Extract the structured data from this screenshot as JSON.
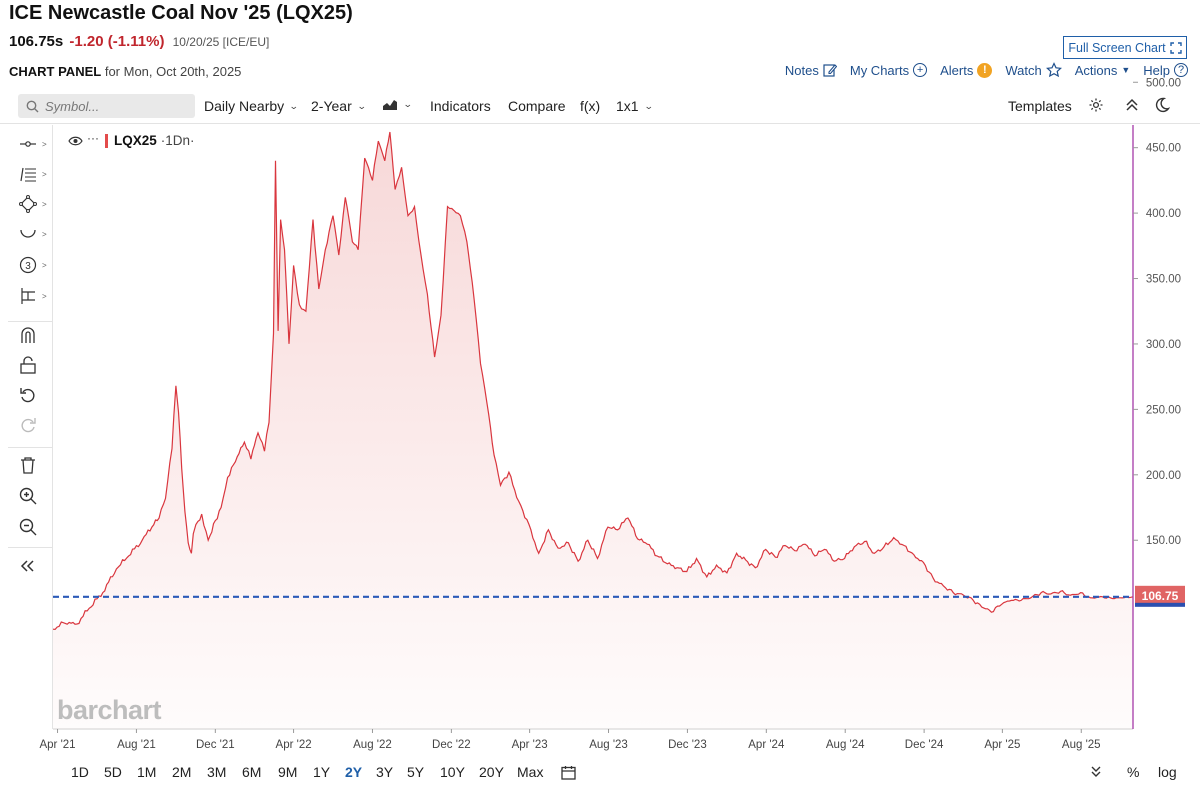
{
  "header": {
    "title": "ICE Newcastle Coal Nov '25 (LQX25)",
    "price": "106.75s",
    "change": "-1.20 (-1.11%)",
    "meta": "10/20/25 [ICE/EU]",
    "panel_label": "CHART PANEL",
    "panel_date": "for Mon, Oct 20th, 2025",
    "full_screen": "Full Screen Chart"
  },
  "actions": {
    "notes": "Notes",
    "my_charts": "My Charts",
    "alerts": "Alerts",
    "watch": "Watch",
    "actions": "Actions",
    "help": "Help"
  },
  "toolbar": {
    "search_placeholder": "Symbol...",
    "aggregation": "Daily Nearby",
    "period": "2-Year",
    "indicators": "Indicators",
    "compare": "Compare",
    "fx": "f(x)",
    "layout": "1x1",
    "templates": "Templates"
  },
  "legend": {
    "symbol": "LQX25",
    "interval": "·1Dn·"
  },
  "watermark": "barchart",
  "timeframes": [
    "1D",
    "5D",
    "1M",
    "2M",
    "3M",
    "6M",
    "9M",
    "1Y",
    "2Y",
    "3Y",
    "5Y",
    "10Y",
    "20Y",
    "Max"
  ],
  "active_timeframe": "2Y",
  "bottom_right": {
    "percent": "%",
    "log": "log"
  },
  "colors": {
    "line": "#d9363e",
    "fill": "#f7d6d6",
    "current_line": "#2b5ab8",
    "price_tag": "#e06464",
    "accent": "#1f5fa8"
  },
  "chart_data": {
    "type": "area",
    "ylim": [
      0,
      500
    ],
    "y_ticks": [
      "500.00",
      "450.00",
      "400.00",
      "350.00",
      "300.00",
      "250.00",
      "200.00",
      "150.00"
    ],
    "x_ticks": [
      "Apr '21",
      "Aug '21",
      "Dec '21",
      "Apr '22",
      "Aug '22",
      "Dec '22",
      "Apr '23",
      "Aug '23",
      "Dec '23",
      "Apr '24",
      "Aug '24",
      "Dec '24",
      "Apr '25",
      "Aug '25"
    ],
    "current_price": 106.75,
    "current_price_label": "106.75",
    "series": [
      {
        "x": [
          "2021-03-25",
          "2021-04-10",
          "2021-05-01",
          "2021-05-20",
          "2021-06-10",
          "2021-07-01",
          "2021-07-20",
          "2021-08-10",
          "2021-08-25",
          "2021-09-05",
          "2021-09-15",
          "2021-09-25",
          "2021-10-01",
          "2021-10-05",
          "2021-10-10",
          "2021-10-15",
          "2021-10-20",
          "2021-10-25",
          "2021-10-28",
          "2021-11-01",
          "2021-11-10",
          "2021-11-20",
          "2021-12-01",
          "2021-12-10",
          "2021-12-20",
          "2022-01-01",
          "2022-01-15",
          "2022-01-25",
          "2022-02-05",
          "2022-02-15",
          "2022-02-22",
          "2022-03-01",
          "2022-03-04",
          "2022-03-08",
          "2022-03-12",
          "2022-03-18",
          "2022-03-25",
          "2022-04-01",
          "2022-04-10",
          "2022-04-20",
          "2022-05-01",
          "2022-05-10",
          "2022-05-20",
          "2022-06-01",
          "2022-06-10",
          "2022-06-20",
          "2022-07-01",
          "2022-07-10",
          "2022-07-20",
          "2022-08-01",
          "2022-08-10",
          "2022-08-20",
          "2022-08-28",
          "2022-09-05",
          "2022-09-15",
          "2022-09-25",
          "2022-10-05",
          "2022-10-15",
          "2022-10-25",
          "2022-11-05",
          "2022-11-15",
          "2022-11-25",
          "2022-12-05",
          "2022-12-15",
          "2022-12-25",
          "2023-01-05",
          "2023-01-15",
          "2023-01-25",
          "2023-02-05",
          "2023-02-15",
          "2023-02-28",
          "2023-03-15",
          "2023-03-31",
          "2023-04-15",
          "2023-04-30",
          "2023-05-15",
          "2023-05-31",
          "2023-06-15",
          "2023-06-30",
          "2023-07-15",
          "2023-07-31",
          "2023-08-15",
          "2023-08-31",
          "2023-09-15",
          "2023-09-30",
          "2023-10-15",
          "2023-10-31",
          "2023-11-15",
          "2023-11-30",
          "2023-12-15",
          "2023-12-31",
          "2024-01-15",
          "2024-01-31",
          "2024-02-15",
          "2024-02-29",
          "2024-03-15",
          "2024-03-31",
          "2024-04-15",
          "2024-04-30",
          "2024-05-15",
          "2024-05-31",
          "2024-06-15",
          "2024-06-30",
          "2024-07-15",
          "2024-07-31",
          "2024-08-15",
          "2024-08-31",
          "2024-09-15",
          "2024-09-30",
          "2024-10-15",
          "2024-10-31",
          "2024-11-15",
          "2024-11-30",
          "2024-12-15",
          "2024-12-31",
          "2025-01-15",
          "2025-01-31",
          "2025-02-15",
          "2025-02-28",
          "2025-03-15",
          "2025-03-31",
          "2025-04-15",
          "2025-04-30",
          "2025-05-15",
          "2025-05-31",
          "2025-06-15",
          "2025-06-30",
          "2025-07-15",
          "2025-07-31",
          "2025-08-15",
          "2025-08-31",
          "2025-09-15",
          "2025-09-30",
          "2025-10-10",
          "2025-10-20"
        ],
        "values": [
          82,
          87,
          86,
          98,
          110,
          128,
          138,
          150,
          160,
          167,
          182,
          220,
          268,
          248,
          205,
          172,
          148,
          140,
          155,
          162,
          170,
          150,
          165,
          175,
          198,
          210,
          225,
          212,
          232,
          218,
          240,
          308,
          440,
          310,
          395,
          372,
          300,
          360,
          330,
          325,
          395,
          342,
          372,
          398,
          368,
          412,
          378,
          372,
          442,
          425,
          455,
          440,
          462,
          418,
          435,
          398,
          405,
          368,
          338,
          290,
          322,
          405,
          402,
          398,
          378,
          335,
          285,
          255,
          215,
          192,
          202,
          180,
          162,
          140,
          158,
          144,
          148,
          134,
          150,
          136,
          160,
          158,
          167,
          151,
          147,
          138,
          132,
          129,
          126,
          136,
          122,
          131,
          125,
          140,
          135,
          129,
          143,
          137,
          146,
          142,
          147,
          138,
          143,
          134,
          136,
          145,
          149,
          140,
          145,
          152,
          146,
          139,
          133,
          121,
          115,
          110,
          108,
          104,
          99,
          95,
          101,
          104,
          104,
          106,
          110,
          109,
          111,
          108,
          110,
          106,
          107,
          106,
          106,
          107,
          106.75
        ]
      }
    ]
  }
}
